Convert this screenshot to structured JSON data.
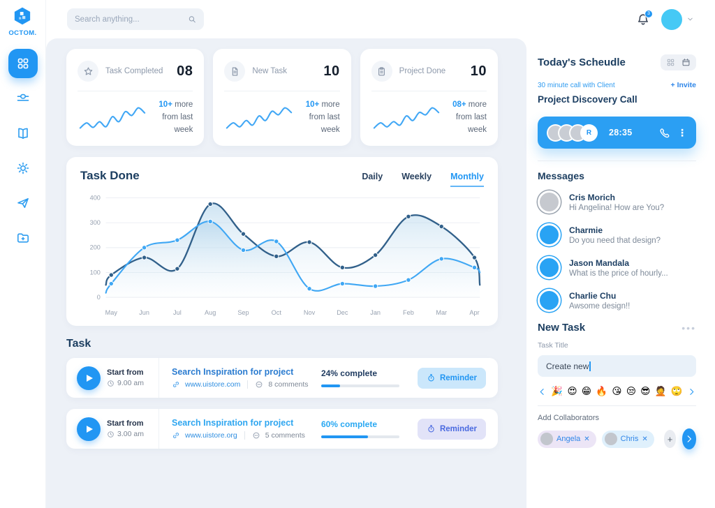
{
  "brand": {
    "name": "OCTOM."
  },
  "header": {
    "search_placeholder": "Search anything...",
    "notification_count": "3"
  },
  "sidebar": {
    "items": [
      {
        "icon": "dashboard-grid",
        "active": true
      },
      {
        "icon": "tune",
        "active": false
      },
      {
        "icon": "book",
        "active": false
      },
      {
        "icon": "settings-gear",
        "active": false
      },
      {
        "icon": "send-plane",
        "active": false
      },
      {
        "icon": "folder-add",
        "active": false
      }
    ]
  },
  "stats": [
    {
      "icon": "star",
      "label": "Task Completed",
      "value": "08",
      "delta": "10+",
      "delta_rest": "more",
      "note": "from last week",
      "spark": [
        20,
        28,
        21,
        30,
        22,
        38,
        30,
        46,
        40,
        52,
        44
      ]
    },
    {
      "icon": "file",
      "label": "New Task",
      "value": "10",
      "delta": "10+",
      "delta_rest": "more",
      "note": "from last week",
      "spark": [
        18,
        27,
        20,
        31,
        23,
        39,
        31,
        47,
        41,
        53,
        45
      ]
    },
    {
      "icon": "clipboard",
      "label": "Project Done",
      "value": "10",
      "delta": "08+",
      "delta_rest": "more",
      "note": "from last week",
      "spark": [
        19,
        28,
        21,
        30,
        24,
        40,
        32,
        46,
        42,
        54,
        46
      ]
    }
  ],
  "task_done": {
    "title": "Task Done",
    "tabs": [
      "Daily",
      "Weekly",
      "Monthly"
    ],
    "active_tab": "Monthly"
  },
  "chart_data": {
    "type": "line",
    "title": "Task Done",
    "categories": [
      "May",
      "Jun",
      "Jul",
      "Aug",
      "Sep",
      "Oct",
      "Nov",
      "Dec",
      "Jan",
      "Feb",
      "Mar",
      "Apr"
    ],
    "series": [
      {
        "name": "completed",
        "color": "#31608a",
        "values": [
          90,
          160,
          115,
          375,
          255,
          165,
          222,
          120,
          170,
          325,
          285,
          160
        ],
        "edge_start": 50,
        "edge_end": 50
      },
      {
        "name": "new",
        "color": "#3fa7f4",
        "values": [
          55,
          200,
          230,
          305,
          190,
          225,
          35,
          55,
          45,
          70,
          155,
          120
        ],
        "edge_start": 18,
        "edge_end": 100
      }
    ],
    "ylim": [
      0,
      400
    ],
    "yticks": [
      0,
      100,
      200,
      300,
      400
    ],
    "grid": true,
    "area_fill": true,
    "legend": "none"
  },
  "tasks": {
    "title": "Task",
    "rows": [
      {
        "start_label": "Start from",
        "time": "9.00 am",
        "title": "Search Inspiration for project",
        "title_color": "#2b7cd0",
        "url": "www.uistore.com",
        "comments": "8 comments",
        "progress_label": "24% complete",
        "progress_pct": 24,
        "progress_label_color": "#1e3a5f",
        "reminder_label": "Reminder",
        "reminder_bg": "#cbe7fb",
        "reminder_color": "#2196f3"
      },
      {
        "start_label": "Start from",
        "time": "3.00 am",
        "title": "Search Inspiration for project",
        "title_color": "#2ea6f0",
        "url": "www.uistore.org",
        "comments": "5 comments",
        "progress_label": "60% complete",
        "progress_pct": 60,
        "progress_label_color": "#29a8f2",
        "reminder_label": "Reminder",
        "reminder_bg": "#e2e3f8",
        "reminder_color": "#4a6ae0"
      }
    ]
  },
  "schedule": {
    "title": "Today's Scheudle",
    "subtitle": "30 minute call with Client",
    "invite_label": "+ Invite",
    "call_title": "Project Discovery Call",
    "timer": "28:35",
    "avatar_initial": "R"
  },
  "messages": {
    "title": "Messages",
    "items": [
      {
        "name": "Cris Morich",
        "preview": "Hi Angelina! How are You?",
        "avatar_color": "#c6c9cf",
        "ring": "#9aa3ae"
      },
      {
        "name": "Charmie",
        "preview": "Do you need that design?",
        "avatar_color": "#29a3f4",
        "ring": "#29a3f4"
      },
      {
        "name": "Jason Mandala",
        "preview": "What is the price of hourly...",
        "avatar_color": "#29a3f4",
        "ring": "#29a3f4"
      },
      {
        "name": "Charlie Chu",
        "preview": "Awsome design!!",
        "avatar_color": "#29a3f4",
        "ring": "#29a3f4"
      }
    ]
  },
  "new_task": {
    "title": "New Task",
    "field_label": "Task Title",
    "field_value": "Create new",
    "emojis": [
      "🎉",
      "😍",
      "😁",
      "🔥",
      "😘",
      "😒",
      "😎",
      "🤦",
      "🙄"
    ],
    "collaborators_label": "Add Collaborators",
    "collaborators": [
      {
        "name": "Angela",
        "bg": "#ece5f6"
      },
      {
        "name": "Chris",
        "bg": "#dff0fc"
      }
    ]
  },
  "colors": {
    "primary": "#2196f3",
    "navy": "#1c3e60",
    "avatar_cyan": "#45c9f5",
    "chart_dark": "#31608a",
    "chart_light": "#3fa7f4"
  }
}
